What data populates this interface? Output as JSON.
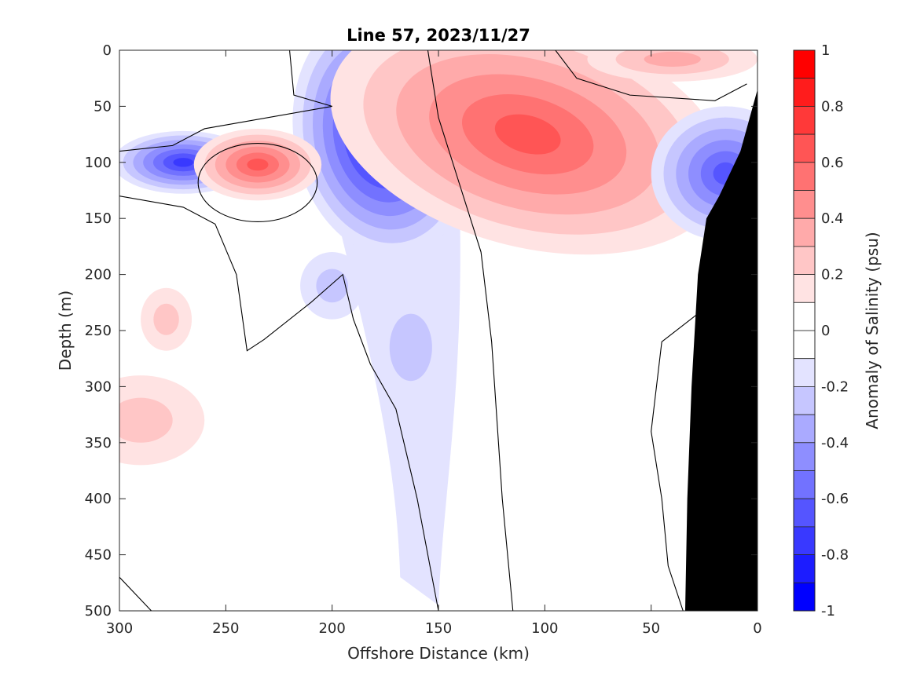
{
  "chart_data": {
    "type": "heatmap",
    "subtype": "filled-contour section",
    "title": "Line 57, 2023/11/27",
    "xlabel": "Offshore Distance (km)",
    "ylabel": "Depth (m)",
    "xlim": [
      300,
      0
    ],
    "ylim": [
      500,
      0
    ],
    "x_reversed": true,
    "y_reversed": true,
    "xticks": [
      300,
      250,
      200,
      150,
      100,
      50,
      0
    ],
    "yticks": [
      0,
      50,
      100,
      150,
      200,
      250,
      300,
      350,
      400,
      450,
      500
    ],
    "colorbar": {
      "label": "Anomaly of Salinity (psu)",
      "range": [
        -1,
        1
      ],
      "ticks": [
        "1",
        "0.8",
        "0.6",
        "0.4",
        "0.2",
        "0",
        "-0.2",
        "-0.4",
        "-0.6",
        "-0.8",
        "-1"
      ],
      "levels": 20,
      "colors": {
        "1": "#ff0000",
        "0.9": "#ff1c1c",
        "0.8": "#ff3939",
        "0.7": "#ff5555",
        "0.6": "#ff7272",
        "0.5": "#ff8e8e",
        "0.4": "#ffaaaa",
        "0.3": "#ffc6c6",
        "0.2": "#ffe3e3",
        "0.1": "#ffffff",
        "0": "#ffffff",
        "-0.1": "#e3e3ff",
        "-0.2": "#c6c6ff",
        "-0.3": "#aaaaff",
        "-0.4": "#8e8eff",
        "-0.5": "#7272ff",
        "-0.6": "#5555ff",
        "-0.7": "#3939ff",
        "-0.8": "#1c1cff",
        "-0.9": "#0000ff"
      }
    },
    "zero_contour": true,
    "bathymetry_color": "#000000",
    "features": [
      {
        "kind": "negative core",
        "x": 176,
        "depth": 70,
        "anomaly": -0.85
      },
      {
        "kind": "negative core",
        "x": 270,
        "depth": 100,
        "anomaly": -0.7
      },
      {
        "kind": "positive core",
        "x": 235,
        "depth": 102,
        "anomaly": 0.6
      },
      {
        "kind": "positive core",
        "x": 108,
        "depth": 72,
        "anomaly": 0.55
      },
      {
        "kind": "positive core",
        "x": 40,
        "depth": 5,
        "anomaly": 0.3
      },
      {
        "kind": "negative core",
        "x": 15,
        "depth": 95,
        "anomaly": -0.6
      },
      {
        "kind": "negative tongue",
        "x": 158,
        "depth_range": [
          150,
          490
        ],
        "anomaly": -0.15
      },
      {
        "kind": "negative patch",
        "x": 165,
        "depth": 265,
        "anomaly": -0.25
      },
      {
        "kind": "positive patch",
        "x": 280,
        "depth": 325,
        "anomaly": 0.15
      }
    ]
  }
}
